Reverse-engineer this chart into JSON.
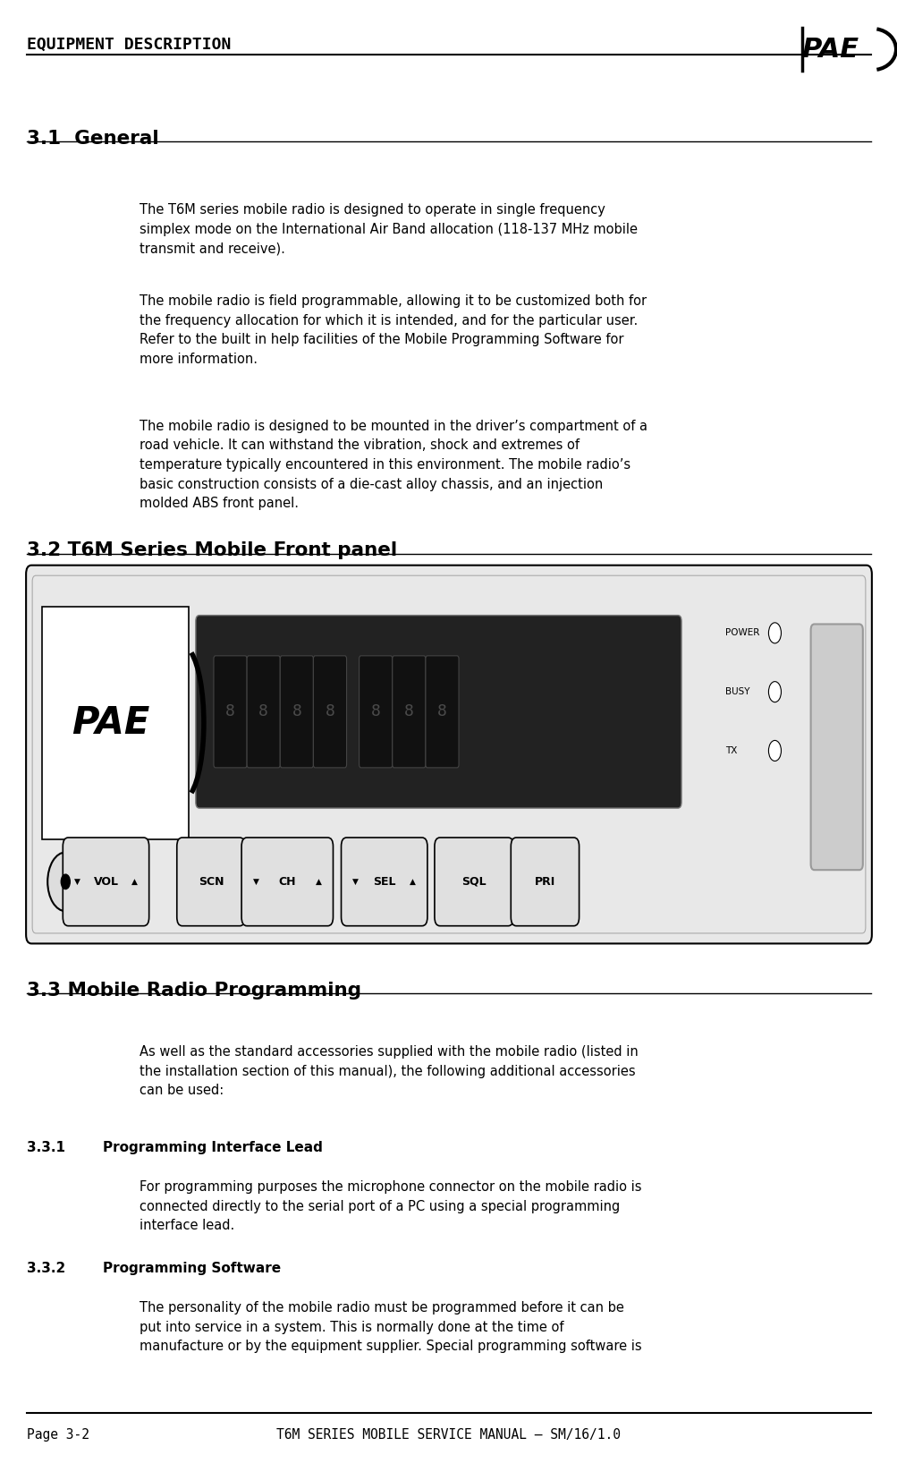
{
  "header_title": "EQUIPMENT DESCRIPTION",
  "footer_left": "Page 3-2",
  "footer_right": "T6M SERIES MOBILE SERVICE MANUAL – SM/16/1.0",
  "section_31_title": "3.1  General",
  "section_32_title": "3.2 T6M Series Mobile Front panel",
  "section_33_title": "3.3 Mobile Radio Programming",
  "section_331_title": "3.3.1",
  "section_331_label": "Programming Interface Lead",
  "section_332_title": "3.3.2",
  "section_332_label": "Programming Software",
  "para1": "The T6M series mobile radio is designed to operate in single frequency\nsimplex mode on the International Air Band allocation (118-137 MHz mobile\ntransmit and receive).",
  "para2": "The mobile radio is field programmable, allowing it to be customized both for\nthe frequency allocation for which it is intended, and for the particular user.\nRefer to the built in help facilities of the Mobile Programming Software for\nmore information.",
  "para3": "The mobile radio is designed to be mounted in the driver’s compartment of a\nroad vehicle. It can withstand the vibration, shock and extremes of\ntemperature typically encountered in this environment. The mobile radio’s\nbasic construction consists of a die-cast alloy chassis, and an injection\nmolded ABS front panel.",
  "para33": "As well as the standard accessories supplied with the mobile radio (listed in\nthe installation section of this manual), the following additional accessories\ncan be used:",
  "para331": "For programming purposes the microphone connector on the mobile radio is\nconnected directly to the serial port of a PC using a special programming\ninterface lead.",
  "para332": "The personality of the mobile radio must be programmed before it can be\nput into service in a system. This is normally done at the time of\nmanufacture or by the equipment supplier. Special programming software is",
  "bg_color": "#ffffff",
  "text_color": "#000000"
}
